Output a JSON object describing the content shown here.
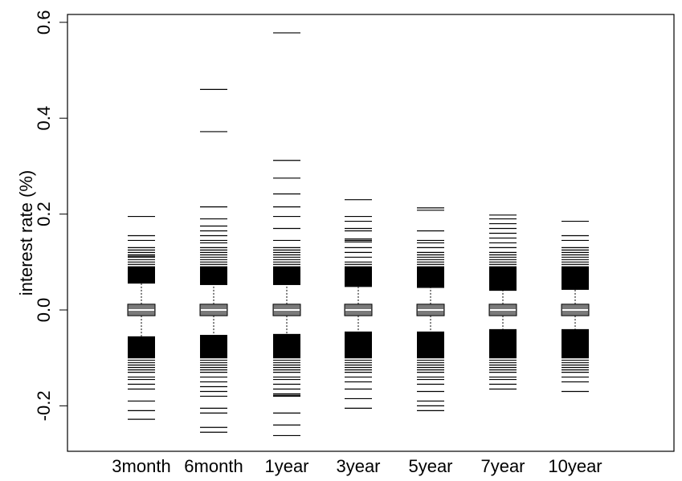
{
  "chart_data": {
    "type": "boxplot",
    "title": "",
    "xlabel": "",
    "ylabel": "interest rate (%)",
    "ylim": [
      -0.29,
      0.6
    ],
    "yticks": [
      -0.2,
      0.0,
      0.2,
      0.4,
      0.6
    ],
    "ytick_labels": [
      "-0.2",
      "0.0",
      "0.2",
      "0.4",
      "0.6"
    ],
    "grid": false,
    "categories": [
      "3month",
      "6month",
      "1year",
      "3year",
      "5year",
      "7year",
      "10year"
    ],
    "boxes": [
      {
        "name": "3month",
        "q1": -0.012,
        "median": 0.0,
        "q3": 0.012,
        "whisker_low": -0.055,
        "whisker_high": 0.055,
        "outliers_high": [
          0.195,
          0.155,
          0.145,
          0.13,
          0.125,
          0.12,
          0.115,
          0.112,
          0.11,
          0.105,
          0.1,
          0.095,
          0.09,
          0.085,
          0.08,
          0.075,
          0.07,
          0.065,
          0.06
        ],
        "outliers_low": [
          -0.228,
          -0.21,
          -0.19,
          -0.165,
          -0.155,
          -0.145,
          -0.14,
          -0.13,
          -0.125,
          -0.12,
          -0.115,
          -0.11,
          -0.105,
          -0.1,
          -0.095,
          -0.09,
          -0.085,
          -0.08,
          -0.075,
          -0.07,
          -0.065,
          -0.06
        ]
      },
      {
        "name": "6month",
        "q1": -0.012,
        "median": 0.0,
        "q3": 0.012,
        "whisker_low": -0.052,
        "whisker_high": 0.052,
        "outliers_high": [
          0.46,
          0.372,
          0.215,
          0.19,
          0.175,
          0.165,
          0.155,
          0.145,
          0.14,
          0.13,
          0.125,
          0.12,
          0.115,
          0.11,
          0.105,
          0.1,
          0.095,
          0.09,
          0.085,
          0.08,
          0.075,
          0.07,
          0.065,
          0.06
        ],
        "outliers_low": [
          -0.255,
          -0.245,
          -0.215,
          -0.205,
          -0.18,
          -0.17,
          -0.16,
          -0.15,
          -0.14,
          -0.13,
          -0.125,
          -0.12,
          -0.115,
          -0.11,
          -0.105,
          -0.1,
          -0.095,
          -0.09,
          -0.085,
          -0.08,
          -0.075,
          -0.07,
          -0.065,
          -0.06
        ]
      },
      {
        "name": "1year",
        "q1": -0.012,
        "median": 0.0,
        "q3": 0.012,
        "whisker_low": -0.05,
        "whisker_high": 0.052,
        "outliers_high": [
          0.578,
          0.312,
          0.275,
          0.242,
          0.215,
          0.195,
          0.17,
          0.145,
          0.13,
          0.125,
          0.12,
          0.115,
          0.11,
          0.105,
          0.1,
          0.095,
          0.09,
          0.085,
          0.08,
          0.075,
          0.07,
          0.065,
          0.06
        ],
        "outliers_low": [
          -0.262,
          -0.24,
          -0.215,
          -0.18,
          -0.178,
          -0.175,
          -0.165,
          -0.155,
          -0.145,
          -0.14,
          -0.13,
          -0.125,
          -0.12,
          -0.115,
          -0.11,
          -0.105,
          -0.1,
          -0.095,
          -0.09,
          -0.085,
          -0.08,
          -0.075,
          -0.07,
          -0.065,
          -0.06,
          -0.055
        ]
      },
      {
        "name": "3year",
        "q1": -0.012,
        "median": 0.0,
        "q3": 0.012,
        "whisker_low": -0.045,
        "whisker_high": 0.048,
        "outliers_high": [
          0.23,
          0.195,
          0.185,
          0.17,
          0.165,
          0.148,
          0.145,
          0.142,
          0.13,
          0.12,
          0.11,
          0.1,
          0.095,
          0.09,
          0.085,
          0.08,
          0.075,
          0.07,
          0.065,
          0.06,
          0.055,
          0.05
        ],
        "outliers_low": [
          -0.205,
          -0.185,
          -0.165,
          -0.15,
          -0.14,
          -0.13,
          -0.125,
          -0.12,
          -0.115,
          -0.11,
          -0.105,
          -0.1,
          -0.095,
          -0.09,
          -0.085,
          -0.08,
          -0.075,
          -0.07,
          -0.065,
          -0.06,
          -0.055,
          -0.05
        ]
      },
      {
        "name": "5year",
        "q1": -0.012,
        "median": 0.0,
        "q3": 0.012,
        "whisker_low": -0.045,
        "whisker_high": 0.046,
        "outliers_high": [
          0.213,
          0.208,
          0.165,
          0.145,
          0.14,
          0.13,
          0.12,
          0.115,
          0.11,
          0.105,
          0.1,
          0.095,
          0.09,
          0.085,
          0.08,
          0.075,
          0.07,
          0.065,
          0.06,
          0.055,
          0.05
        ],
        "outliers_low": [
          -0.21,
          -0.2,
          -0.19,
          -0.17,
          -0.155,
          -0.145,
          -0.14,
          -0.13,
          -0.125,
          -0.12,
          -0.115,
          -0.11,
          -0.105,
          -0.1,
          -0.095,
          -0.09,
          -0.085,
          -0.08,
          -0.075,
          -0.07,
          -0.065,
          -0.06,
          -0.055,
          -0.05
        ]
      },
      {
        "name": "7year",
        "q1": -0.012,
        "median": 0.0,
        "q3": 0.012,
        "whisker_low": -0.04,
        "whisker_high": 0.04,
        "outliers_high": [
          0.198,
          0.19,
          0.18,
          0.17,
          0.16,
          0.15,
          0.14,
          0.13,
          0.12,
          0.115,
          0.11,
          0.105,
          0.1,
          0.095,
          0.09,
          0.085,
          0.08,
          0.075,
          0.07,
          0.065,
          0.06,
          0.055,
          0.05,
          0.045
        ],
        "outliers_low": [
          -0.165,
          -0.155,
          -0.145,
          -0.14,
          -0.13,
          -0.125,
          -0.12,
          -0.115,
          -0.11,
          -0.105,
          -0.1,
          -0.095,
          -0.09,
          -0.085,
          -0.08,
          -0.075,
          -0.07,
          -0.065,
          -0.06,
          -0.055,
          -0.05,
          -0.045
        ]
      },
      {
        "name": "10year",
        "q1": -0.012,
        "median": 0.0,
        "q3": 0.012,
        "whisker_low": -0.04,
        "whisker_high": 0.042,
        "outliers_high": [
          0.185,
          0.155,
          0.145,
          0.13,
          0.125,
          0.12,
          0.115,
          0.11,
          0.105,
          0.1,
          0.095,
          0.09,
          0.085,
          0.08,
          0.075,
          0.07,
          0.065,
          0.06,
          0.055,
          0.05,
          0.045
        ],
        "outliers_low": [
          -0.17,
          -0.15,
          -0.14,
          -0.13,
          -0.125,
          -0.12,
          -0.115,
          -0.11,
          -0.105,
          -0.1,
          -0.095,
          -0.09,
          -0.085,
          -0.08,
          -0.075,
          -0.07,
          -0.065,
          -0.06,
          -0.055,
          -0.05,
          -0.045
        ]
      }
    ],
    "colors": {
      "box_fill": "#7a7a7a",
      "median": "#ffffff",
      "lines": "#000000"
    }
  }
}
